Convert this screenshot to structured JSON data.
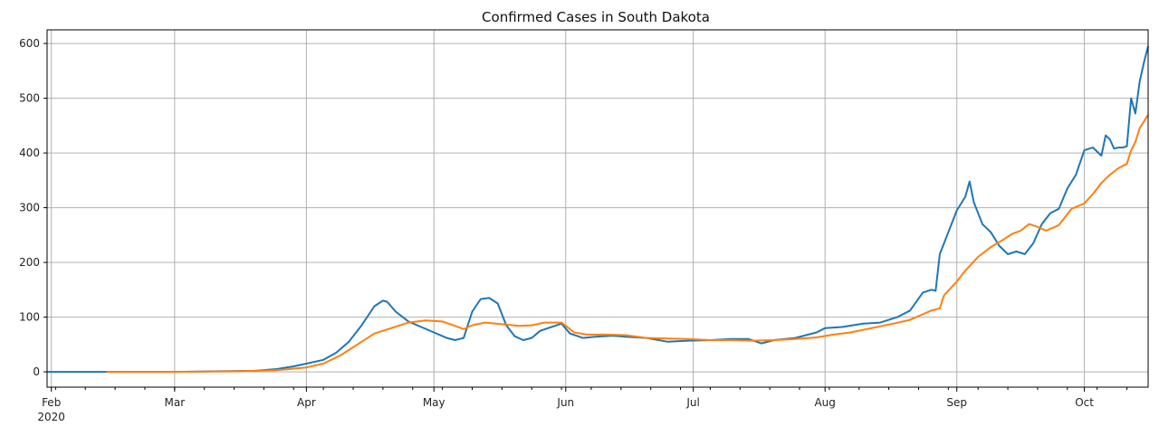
{
  "chart_data": {
    "type": "line",
    "title": "Confirmed Cases in  South Dakota",
    "xlabel": "",
    "ylabel": "",
    "x_range": [
      "2020-01-31",
      "2020-10-11"
    ],
    "ylim": [
      -28,
      625
    ],
    "grid": true,
    "legend": "none",
    "x_ticks": [
      {
        "date": "2020-02-01",
        "label": "Feb",
        "sublabel": "2020"
      },
      {
        "date": "2020-03-01",
        "label": "Mar"
      },
      {
        "date": "2020-04-01",
        "label": "Apr"
      },
      {
        "date": "2020-05-01",
        "label": "May"
      },
      {
        "date": "2020-06-01",
        "label": "Jun"
      },
      {
        "date": "2020-07-01",
        "label": "Jul"
      },
      {
        "date": "2020-08-01",
        "label": "Aug"
      },
      {
        "date": "2020-09-01",
        "label": "Sep"
      },
      {
        "date": "2020-10-01",
        "label": "Oct"
      }
    ],
    "y_ticks": [
      0,
      100,
      200,
      300,
      400,
      500,
      600
    ],
    "series": [
      {
        "color": "#1f77b4",
        "points": [
          [
            "2020-01-31",
            0
          ],
          [
            "2020-02-15",
            0
          ],
          [
            "2020-03-01",
            0
          ],
          [
            "2020-03-10",
            1
          ],
          [
            "2020-03-20",
            2
          ],
          [
            "2020-03-25",
            5
          ],
          [
            "2020-03-29",
            10
          ],
          [
            "2020-04-01",
            15
          ],
          [
            "2020-04-05",
            22
          ],
          [
            "2020-04-08",
            35
          ],
          [
            "2020-04-11",
            55
          ],
          [
            "2020-04-14",
            85
          ],
          [
            "2020-04-17",
            120
          ],
          [
            "2020-04-19",
            130
          ],
          [
            "2020-04-20",
            128
          ],
          [
            "2020-04-22",
            110
          ],
          [
            "2020-04-25",
            92
          ],
          [
            "2020-04-28",
            82
          ],
          [
            "2020-05-01",
            72
          ],
          [
            "2020-05-04",
            62
          ],
          [
            "2020-05-06",
            58
          ],
          [
            "2020-05-08",
            62
          ],
          [
            "2020-05-10",
            110
          ],
          [
            "2020-05-12",
            133
          ],
          [
            "2020-05-14",
            135
          ],
          [
            "2020-05-16",
            125
          ],
          [
            "2020-05-18",
            85
          ],
          [
            "2020-05-20",
            65
          ],
          [
            "2020-05-22",
            58
          ],
          [
            "2020-05-24",
            62
          ],
          [
            "2020-05-26",
            75
          ],
          [
            "2020-05-29",
            83
          ],
          [
            "2020-05-31",
            88
          ],
          [
            "2020-06-02",
            70
          ],
          [
            "2020-06-05",
            62
          ],
          [
            "2020-06-08",
            64
          ],
          [
            "2020-06-12",
            66
          ],
          [
            "2020-06-15",
            64
          ],
          [
            "2020-06-20",
            62
          ],
          [
            "2020-06-25",
            55
          ],
          [
            "2020-06-30",
            57
          ],
          [
            "2020-07-05",
            58
          ],
          [
            "2020-07-10",
            60
          ],
          [
            "2020-07-14",
            60
          ],
          [
            "2020-07-17",
            52
          ],
          [
            "2020-07-20",
            58
          ],
          [
            "2020-07-25",
            62
          ],
          [
            "2020-07-30",
            72
          ],
          [
            "2020-08-01",
            80
          ],
          [
            "2020-08-05",
            82
          ],
          [
            "2020-08-10",
            88
          ],
          [
            "2020-08-14",
            90
          ],
          [
            "2020-08-18",
            100
          ],
          [
            "2020-08-21",
            112
          ],
          [
            "2020-08-24",
            145
          ],
          [
            "2020-08-26",
            150
          ],
          [
            "2020-08-27",
            148
          ],
          [
            "2020-08-28",
            215
          ],
          [
            "2020-08-30",
            255
          ],
          [
            "2020-09-01",
            295
          ],
          [
            "2020-09-03",
            320
          ],
          [
            "2020-09-04",
            348
          ],
          [
            "2020-09-05",
            310
          ],
          [
            "2020-09-07",
            270
          ],
          [
            "2020-09-09",
            255
          ],
          [
            "2020-09-11",
            230
          ],
          [
            "2020-09-13",
            215
          ],
          [
            "2020-09-15",
            220
          ],
          [
            "2020-09-17",
            215
          ],
          [
            "2020-09-19",
            235
          ],
          [
            "2020-09-21",
            270
          ],
          [
            "2020-09-23",
            290
          ],
          [
            "2020-09-25",
            298
          ],
          [
            "2020-09-27",
            335
          ],
          [
            "2020-09-29",
            360
          ],
          [
            "2020-10-01",
            405
          ],
          [
            "2020-10-03",
            410
          ],
          [
            "2020-10-05",
            395
          ],
          [
            "2020-10-06",
            432
          ],
          [
            "2020-10-07",
            425
          ],
          [
            "2020-10-08",
            408
          ],
          [
            "2020-10-09",
            410
          ],
          [
            "2020-10-10",
            410
          ],
          [
            "2020-10-11",
            412
          ],
          [
            "2020-10-12",
            500
          ],
          [
            "2020-10-13",
            472
          ],
          [
            "2020-10-14",
            530
          ],
          [
            "2020-10-15",
            565
          ],
          [
            "2020-10-16",
            595
          ]
        ]
      },
      {
        "color": "#ff7f0e",
        "points": [
          [
            "2020-02-14",
            0
          ],
          [
            "2020-03-01",
            0
          ],
          [
            "2020-03-15",
            1
          ],
          [
            "2020-03-25",
            3
          ],
          [
            "2020-04-01",
            8
          ],
          [
            "2020-04-05",
            15
          ],
          [
            "2020-04-09",
            30
          ],
          [
            "2020-04-13",
            50
          ],
          [
            "2020-04-17",
            70
          ],
          [
            "2020-04-21",
            80
          ],
          [
            "2020-04-25",
            90
          ],
          [
            "2020-04-29",
            94
          ],
          [
            "2020-05-03",
            92
          ],
          [
            "2020-05-06",
            84
          ],
          [
            "2020-05-08",
            78
          ],
          [
            "2020-05-10",
            85
          ],
          [
            "2020-05-13",
            90
          ],
          [
            "2020-05-17",
            87
          ],
          [
            "2020-05-21",
            84
          ],
          [
            "2020-05-24",
            85
          ],
          [
            "2020-05-27",
            90
          ],
          [
            "2020-05-31",
            90
          ],
          [
            "2020-06-03",
            72
          ],
          [
            "2020-06-06",
            68
          ],
          [
            "2020-06-10",
            68
          ],
          [
            "2020-06-15",
            67
          ],
          [
            "2020-06-20",
            62
          ],
          [
            "2020-06-25",
            61
          ],
          [
            "2020-06-30",
            60
          ],
          [
            "2020-07-05",
            58
          ],
          [
            "2020-07-10",
            58
          ],
          [
            "2020-07-15",
            57
          ],
          [
            "2020-07-20",
            58
          ],
          [
            "2020-07-25",
            60
          ],
          [
            "2020-07-30",
            63
          ],
          [
            "2020-08-03",
            68
          ],
          [
            "2020-08-07",
            72
          ],
          [
            "2020-08-12",
            80
          ],
          [
            "2020-08-17",
            88
          ],
          [
            "2020-08-21",
            95
          ],
          [
            "2020-08-26",
            112
          ],
          [
            "2020-08-28",
            116
          ],
          [
            "2020-08-29",
            140
          ],
          [
            "2020-09-01",
            165
          ],
          [
            "2020-09-03",
            185
          ],
          [
            "2020-09-06",
            210
          ],
          [
            "2020-09-09",
            228
          ],
          [
            "2020-09-12",
            242
          ],
          [
            "2020-09-14",
            252
          ],
          [
            "2020-09-16",
            258
          ],
          [
            "2020-09-18",
            270
          ],
          [
            "2020-09-20",
            265
          ],
          [
            "2020-09-22",
            258
          ],
          [
            "2020-09-25",
            268
          ],
          [
            "2020-09-28",
            298
          ],
          [
            "2020-10-01",
            308
          ],
          [
            "2020-10-03",
            325
          ],
          [
            "2020-10-05",
            345
          ],
          [
            "2020-10-07",
            360
          ],
          [
            "2020-10-09",
            372
          ],
          [
            "2020-10-11",
            380
          ],
          [
            "2020-10-12",
            405
          ],
          [
            "2020-10-13",
            420
          ],
          [
            "2020-10-14",
            445
          ],
          [
            "2020-10-16",
            470
          ]
        ]
      }
    ]
  }
}
